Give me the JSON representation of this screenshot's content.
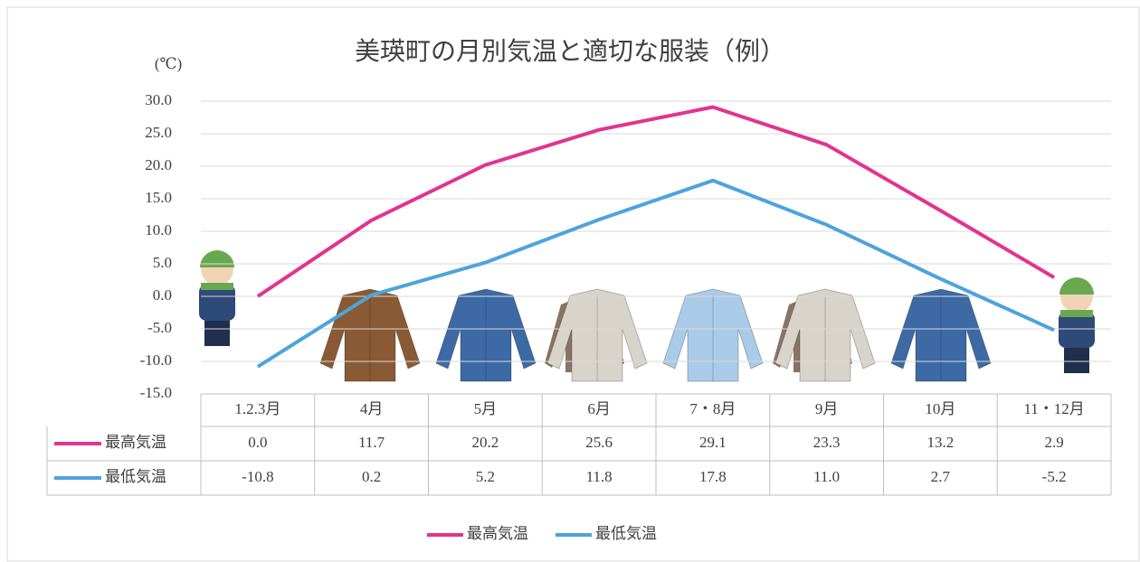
{
  "chart_data": {
    "type": "line",
    "title": "美瑛町の月別気温と適切な服装（例）",
    "y_label": "(℃)",
    "categories": [
      "1.2.3月",
      "4月",
      "5月",
      "6月",
      "7・8月",
      "9月",
      "10月",
      "11・12月"
    ],
    "series": [
      {
        "name": "最高気温",
        "color": "#e2338f",
        "values": [
          0.0,
          11.7,
          20.2,
          25.6,
          29.1,
          23.3,
          13.2,
          2.9
        ],
        "value_labels": [
          "0.0",
          "11.7",
          "20.2",
          "25.6",
          "29.1",
          "23.3",
          "13.2",
          "2.9"
        ]
      },
      {
        "name": "最低気温",
        "color": "#4ea3dc",
        "values": [
          -10.8,
          0.2,
          5.2,
          11.8,
          17.8,
          11.0,
          2.7,
          -5.2
        ],
        "value_labels": [
          "-10.8",
          "0.2",
          "5.2",
          "11.8",
          "17.8",
          "11.0",
          "2.7",
          "-5.2"
        ]
      }
    ],
    "ylim": [
      -15,
      30
    ],
    "yticks": [
      {
        "value": -15,
        "label": "-15.0"
      },
      {
        "value": -10,
        "label": "-10.0"
      },
      {
        "value": -5,
        "label": "-5.0"
      },
      {
        "value": 0,
        "label": "0.0"
      },
      {
        "value": 5,
        "label": "5.0"
      },
      {
        "value": 10,
        "label": "10.0"
      },
      {
        "value": 15,
        "label": "15.0"
      },
      {
        "value": 20,
        "label": "20.0"
      },
      {
        "value": 25,
        "label": "25.0"
      },
      {
        "value": 30,
        "label": "30.0"
      }
    ],
    "grid": true
  }
}
